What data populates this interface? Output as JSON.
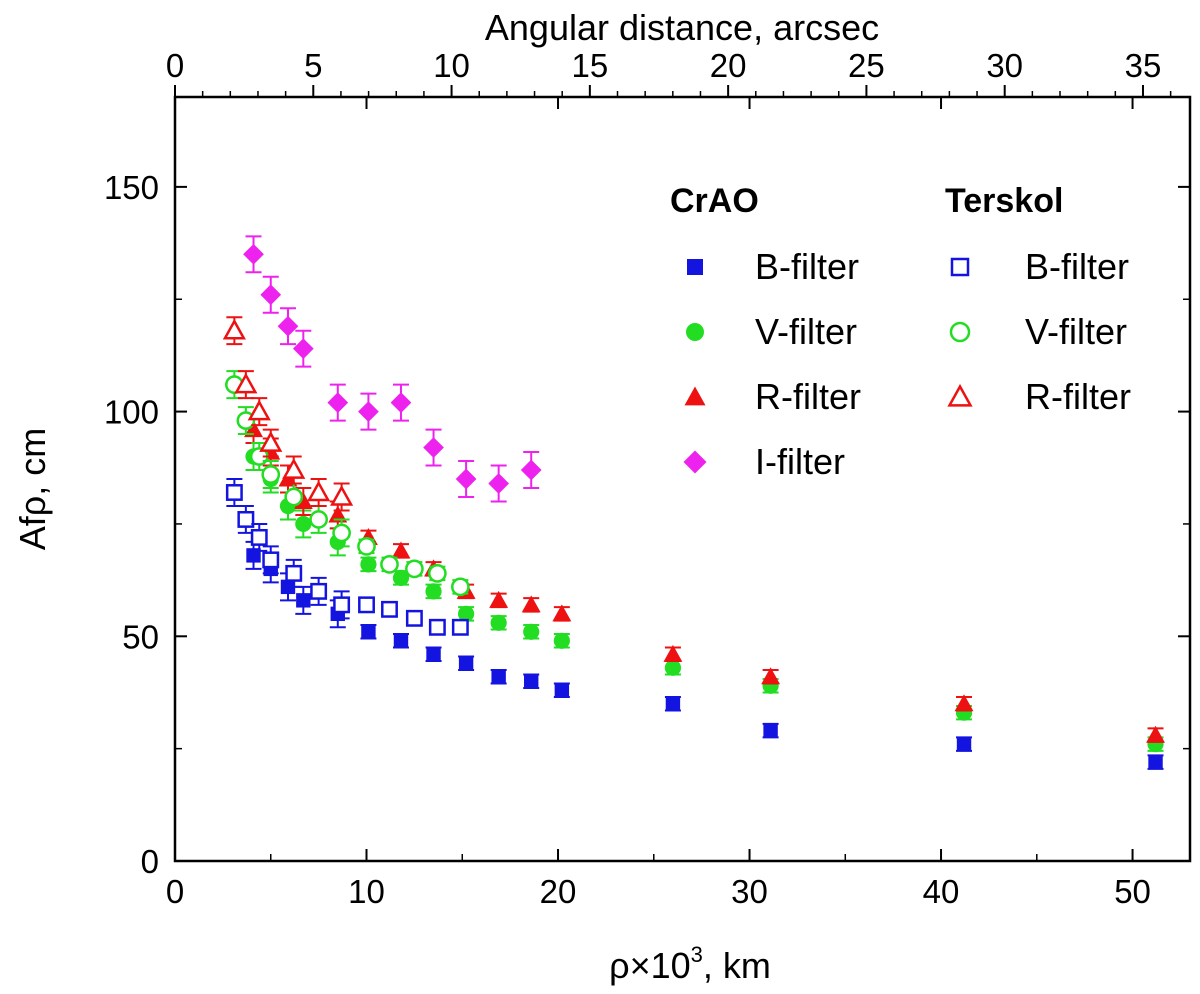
{
  "chart_data": {
    "type": "scatter",
    "xlabel": "ρ×10",
    "xlabel_sup": "3",
    "xlabel_suffix": ", km",
    "ylabel": "Afρ, cm",
    "top_axis_label": "Angular distance, arcsec",
    "xlim": [
      0,
      53
    ],
    "ylim": [
      0,
      170
    ],
    "top_xlim": [
      0,
      36.7
    ],
    "x_ticks": [
      0,
      10,
      20,
      30,
      40,
      50
    ],
    "y_ticks": [
      0,
      50,
      100,
      150
    ],
    "top_ticks": [
      0,
      5,
      10,
      15,
      20,
      25,
      30,
      35
    ],
    "legend_groups": [
      "CrAO",
      "Terskol"
    ],
    "series": [
      {
        "name": "B-filter",
        "group": "CrAO",
        "marker": "square",
        "filled": true,
        "color": "#1414e0",
        "points": [
          [
            4.1,
            68
          ],
          [
            5.0,
            65
          ],
          [
            5.9,
            61
          ],
          [
            6.7,
            58
          ],
          [
            8.5,
            55
          ],
          [
            10.1,
            51
          ],
          [
            11.8,
            49
          ],
          [
            13.5,
            46
          ],
          [
            15.2,
            44
          ],
          [
            16.9,
            41
          ],
          [
            18.6,
            40
          ],
          [
            20.2,
            38
          ],
          [
            26.0,
            35
          ],
          [
            31.1,
            29
          ],
          [
            41.2,
            26
          ],
          [
            51.2,
            22
          ]
        ]
      },
      {
        "name": "V-filter",
        "group": "CrAO",
        "marker": "circle",
        "filled": true,
        "color": "#22dd22",
        "points": [
          [
            4.1,
            90
          ],
          [
            5.0,
            85
          ],
          [
            5.9,
            79
          ],
          [
            6.7,
            75
          ],
          [
            8.5,
            71
          ],
          [
            10.1,
            66
          ],
          [
            11.8,
            63
          ],
          [
            13.5,
            60
          ],
          [
            15.2,
            55
          ],
          [
            16.9,
            53
          ],
          [
            18.6,
            51
          ],
          [
            20.2,
            49
          ],
          [
            26.0,
            43
          ],
          [
            31.1,
            39
          ],
          [
            41.2,
            33
          ],
          [
            51.2,
            26
          ]
        ]
      },
      {
        "name": "R-filter",
        "group": "CrAO",
        "marker": "triangle",
        "filled": true,
        "color": "#ee1111",
        "points": [
          [
            4.1,
            96
          ],
          [
            5.0,
            91
          ],
          [
            5.9,
            85
          ],
          [
            6.7,
            80
          ],
          [
            8.5,
            77
          ],
          [
            10.1,
            72
          ],
          [
            11.8,
            69
          ],
          [
            13.5,
            65
          ],
          [
            15.2,
            60
          ],
          [
            16.9,
            58
          ],
          [
            18.6,
            57
          ],
          [
            20.2,
            55
          ],
          [
            26.0,
            46
          ],
          [
            31.1,
            41
          ],
          [
            41.2,
            35
          ],
          [
            51.2,
            28
          ]
        ]
      },
      {
        "name": "I-filter",
        "group": "CrAO",
        "marker": "diamond",
        "filled": true,
        "color": "#ee22ee",
        "points": [
          [
            4.1,
            135
          ],
          [
            5.0,
            126
          ],
          [
            5.9,
            119
          ],
          [
            6.7,
            114
          ],
          [
            8.5,
            102
          ],
          [
            10.1,
            100
          ],
          [
            11.8,
            102
          ],
          [
            13.5,
            92
          ],
          [
            15.2,
            85
          ],
          [
            16.9,
            84
          ],
          [
            18.6,
            87
          ]
        ]
      },
      {
        "name": "B-filter",
        "group": "Terskol",
        "marker": "square",
        "filled": false,
        "color": "#1414e0",
        "points": [
          [
            3.1,
            82
          ],
          [
            3.7,
            76
          ],
          [
            4.4,
            72
          ],
          [
            5.0,
            67
          ],
          [
            6.2,
            64
          ],
          [
            7.5,
            60
          ],
          [
            8.7,
            57
          ],
          [
            10.0,
            57
          ],
          [
            11.2,
            56
          ],
          [
            12.5,
            54
          ],
          [
            13.7,
            52
          ],
          [
            14.9,
            52
          ]
        ]
      },
      {
        "name": "V-filter",
        "group": "Terskol",
        "marker": "circle",
        "filled": false,
        "color": "#22dd22",
        "points": [
          [
            3.1,
            106
          ],
          [
            3.7,
            98
          ],
          [
            4.4,
            90
          ],
          [
            5.0,
            86
          ],
          [
            6.2,
            81
          ],
          [
            7.5,
            76
          ],
          [
            8.7,
            73
          ],
          [
            10.0,
            70
          ],
          [
            11.2,
            66
          ],
          [
            12.5,
            65
          ],
          [
            13.7,
            64
          ],
          [
            14.9,
            61
          ]
        ]
      },
      {
        "name": "R-filter",
        "group": "Terskol",
        "marker": "triangle",
        "filled": false,
        "color": "#ee1111",
        "points": [
          [
            3.1,
            118
          ],
          [
            3.7,
            106
          ],
          [
            4.4,
            100
          ],
          [
            5.0,
            93
          ],
          [
            6.2,
            87
          ],
          [
            7.5,
            82
          ],
          [
            8.7,
            81
          ]
        ]
      }
    ],
    "error_bars": "yes",
    "legend_placement": "top-right"
  }
}
